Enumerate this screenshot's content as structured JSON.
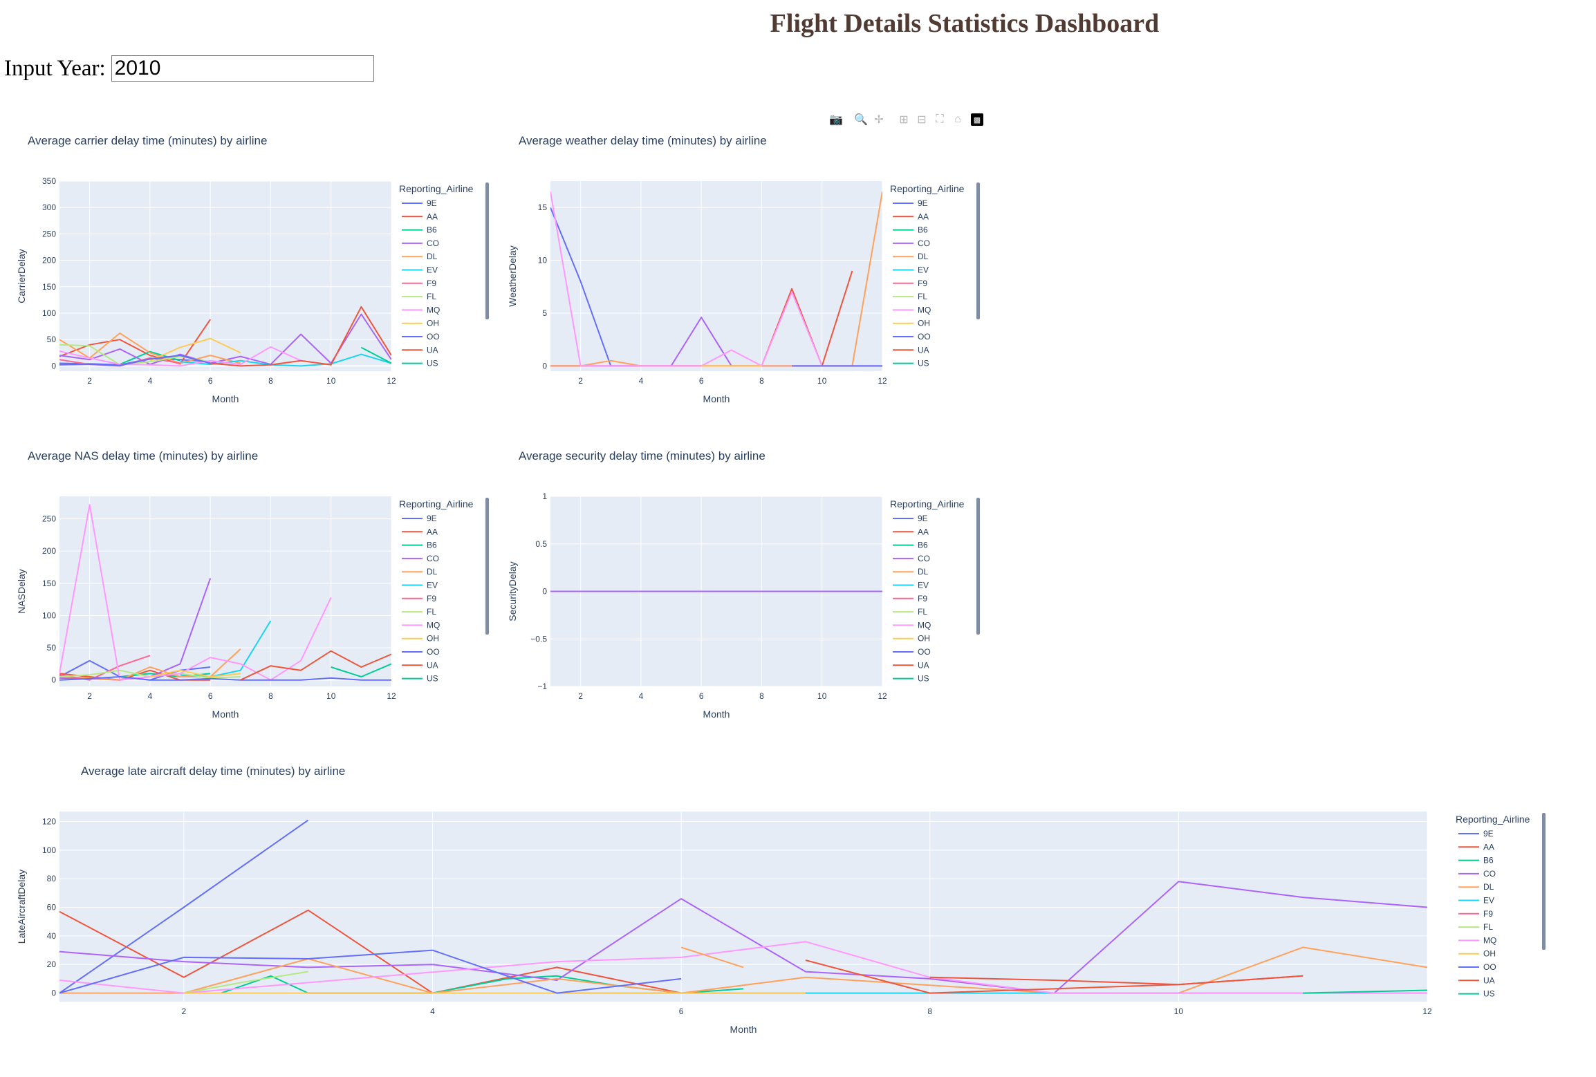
{
  "page": {
    "title": "Flight Details Statistics Dashboard"
  },
  "input": {
    "label": "Input Year:",
    "value": "2010"
  },
  "modebar": {
    "icons": [
      "camera-icon",
      "zoom-icon",
      "pan-icon",
      "zoom-in-icon",
      "zoom-out-icon",
      "autoscale-icon",
      "reset-axes-icon",
      "plotly-logo-icon"
    ]
  },
  "legend_title": "Reporting_Airline",
  "airlines": [
    "9E",
    "AA",
    "B6",
    "CO",
    "DL",
    "EV",
    "F9",
    "FL",
    "MQ",
    "OH",
    "OO",
    "UA",
    "US"
  ],
  "colors": {
    "9E": "#636efa",
    "AA": "#ef553b",
    "B6": "#00cc96",
    "CO": "#ab63fa",
    "DL": "#ffa15a",
    "EV": "#19d3f3",
    "F9": "#ff6692",
    "FL": "#b6e880",
    "MQ": "#ff97ff",
    "OH": "#fecb52",
    "OO": "#636efa",
    "UA": "#ef553b",
    "US": "#00cc96"
  },
  "chart_data": [
    {
      "id": "carrier",
      "type": "line",
      "title": "Average carrier delay time (minutes) by airline",
      "xlabel": "Month",
      "ylabel": "CarrierDelay",
      "xlim": [
        1,
        12
      ],
      "ylim": [
        -10,
        350
      ],
      "xticks": [
        2,
        4,
        6,
        8,
        10,
        12
      ],
      "yticks": [
        0,
        50,
        100,
        150,
        200,
        250,
        300,
        350
      ],
      "series": [
        {
          "name": "9E",
          "x": [
            1,
            2,
            3,
            4,
            5,
            6
          ],
          "y": [
            5,
            4,
            2,
            14,
            12,
            8
          ]
        },
        {
          "name": "AA",
          "x": [
            1,
            2,
            3,
            4,
            5,
            6
          ],
          "y": [
            18,
            40,
            50,
            20,
            4,
            88
          ]
        },
        {
          "name": "B6",
          "x": [
            3,
            4,
            5
          ],
          "y": [
            3,
            27,
            10
          ]
        },
        {
          "name": "CO",
          "x": [
            1,
            2,
            3,
            4,
            5,
            6,
            7,
            8,
            9,
            10,
            11,
            12
          ],
          "y": [
            20,
            12,
            32,
            3,
            22,
            5,
            18,
            3,
            60,
            5,
            98,
            12
          ]
        },
        {
          "name": "DL",
          "x": [
            1,
            2,
            3,
            4,
            5,
            6,
            7
          ],
          "y": [
            50,
            15,
            62,
            25,
            5,
            20,
            5
          ]
        },
        {
          "name": "EV",
          "x": [
            5,
            6,
            7,
            8,
            9,
            10,
            11,
            12
          ],
          "y": [
            8,
            3,
            10,
            2,
            0,
            4,
            22,
            5
          ]
        },
        {
          "name": "F9",
          "x": [
            1,
            2,
            3,
            4,
            5
          ],
          "y": [
            12,
            3,
            0,
            15,
            5
          ]
        },
        {
          "name": "FL",
          "x": [
            1,
            2,
            3,
            4,
            5,
            6
          ],
          "y": [
            40,
            38,
            2,
            8,
            18,
            8
          ]
        },
        {
          "name": "MQ",
          "x": [
            1,
            2,
            3,
            4,
            5,
            6,
            7,
            8,
            9
          ],
          "y": [
            28,
            15,
            3,
            2,
            0,
            10,
            3,
            36,
            10
          ]
        },
        {
          "name": "OH",
          "x": [
            4,
            5,
            6,
            7
          ],
          "y": [
            10,
            35,
            52,
            25
          ]
        },
        {
          "name": "OO",
          "x": [
            1,
            2,
            3,
            4,
            5,
            6
          ],
          "y": [
            2,
            3,
            1,
            13,
            20,
            5
          ]
        },
        {
          "name": "UA",
          "x": [
            6,
            7,
            8,
            9,
            10,
            11,
            12
          ],
          "y": [
            5,
            0,
            2,
            10,
            2,
            112,
            20
          ]
        },
        {
          "name": "US",
          "x": [
            11,
            12
          ],
          "y": [
            35,
            5
          ]
        }
      ]
    },
    {
      "id": "weather",
      "type": "line",
      "title": "Average weather delay time (minutes) by airline",
      "xlabel": "Month",
      "ylabel": "WeatherDelay",
      "xlim": [
        1,
        12
      ],
      "ylim": [
        -0.5,
        17.5
      ],
      "xticks": [
        2,
        4,
        6,
        8,
        10,
        12
      ],
      "yticks": [
        0,
        5,
        10,
        15
      ],
      "series": [
        {
          "name": "9E",
          "x": [
            1,
            2,
            3,
            4,
            5,
            6,
            7,
            8
          ],
          "y": [
            15,
            8,
            0,
            0,
            0,
            0,
            0,
            0
          ]
        },
        {
          "name": "AA",
          "x": [
            1,
            2,
            3,
            4,
            5,
            6,
            7,
            8,
            9,
            10,
            11
          ],
          "y": [
            0,
            0,
            0,
            0,
            0,
            0,
            0,
            0,
            7.3,
            0,
            9
          ]
        },
        {
          "name": "CO",
          "x": [
            1,
            2,
            3,
            4,
            5,
            6,
            7,
            8,
            9,
            10,
            11,
            12
          ],
          "y": [
            0,
            0,
            0,
            0,
            0,
            4.6,
            0,
            0,
            0,
            0,
            0,
            0
          ]
        },
        {
          "name": "DL",
          "x": [
            1,
            2,
            3,
            4,
            5,
            6,
            7,
            8,
            9,
            10,
            11,
            12
          ],
          "y": [
            0,
            0,
            0.5,
            0,
            0,
            0,
            0,
            0,
            0,
            0,
            0,
            16.5
          ]
        },
        {
          "name": "MQ",
          "x": [
            1,
            2,
            3,
            4,
            5,
            6,
            7,
            8,
            9,
            10
          ],
          "y": [
            16.5,
            0,
            0,
            0,
            0,
            0,
            1.5,
            0,
            7,
            0
          ]
        },
        {
          "name": "OH",
          "x": [
            6,
            7,
            8
          ],
          "y": [
            0,
            0,
            0
          ]
        },
        {
          "name": "OO",
          "x": [
            9,
            10,
            11,
            12
          ],
          "y": [
            0,
            0,
            0,
            0
          ]
        }
      ]
    },
    {
      "id": "nas",
      "type": "line",
      "title": "Average NAS delay time (minutes) by airline",
      "xlabel": "Month",
      "ylabel": "NASDelay",
      "xlim": [
        1,
        12
      ],
      "ylim": [
        -10,
        285
      ],
      "xticks": [
        2,
        4,
        6,
        8,
        10,
        12
      ],
      "yticks": [
        0,
        50,
        100,
        150,
        200,
        250
      ],
      "series": [
        {
          "name": "9E",
          "x": [
            1,
            2,
            3,
            4,
            5,
            6
          ],
          "y": [
            5,
            30,
            5,
            0,
            15,
            20
          ]
        },
        {
          "name": "AA",
          "x": [
            1,
            2,
            3,
            4,
            5,
            6
          ],
          "y": [
            10,
            5,
            0,
            15,
            0,
            0
          ]
        },
        {
          "name": "B6",
          "x": [
            3,
            4,
            5,
            6
          ],
          "y": [
            5,
            10,
            5,
            10
          ]
        },
        {
          "name": "CO",
          "x": [
            1,
            2,
            3,
            4,
            5,
            6
          ],
          "y": [
            3,
            2,
            0,
            5,
            25,
            158
          ]
        },
        {
          "name": "DL",
          "x": [
            1,
            2,
            3,
            4,
            5,
            6,
            7
          ],
          "y": [
            5,
            3,
            0,
            20,
            5,
            5,
            48
          ]
        },
        {
          "name": "EV",
          "x": [
            5,
            6,
            7,
            8
          ],
          "y": [
            8,
            5,
            15,
            92
          ]
        },
        {
          "name": "F9",
          "x": [
            1,
            2,
            3,
            4
          ],
          "y": [
            8,
            0,
            22,
            38
          ]
        },
        {
          "name": "FL",
          "x": [
            1,
            2,
            3,
            4,
            5,
            6,
            7
          ],
          "y": [
            5,
            8,
            15,
            5,
            10,
            3,
            5
          ]
        },
        {
          "name": "MQ",
          "x": [
            1,
            2,
            3,
            4,
            5,
            6,
            7,
            8,
            9,
            10
          ],
          "y": [
            10,
            272,
            0,
            5,
            10,
            35,
            25,
            0,
            30,
            128
          ]
        },
        {
          "name": "OH",
          "x": [
            4,
            5,
            6,
            7
          ],
          "y": [
            5,
            15,
            5,
            10
          ]
        },
        {
          "name": "OO",
          "x": [
            1,
            2,
            3,
            4,
            5,
            6,
            7,
            8,
            9,
            10,
            11,
            12
          ],
          "y": [
            0,
            2,
            5,
            0,
            0,
            2,
            0,
            0,
            0,
            3,
            0,
            0
          ]
        },
        {
          "name": "UA",
          "x": [
            7,
            8,
            9,
            10,
            11,
            12
          ],
          "y": [
            0,
            22,
            15,
            45,
            20,
            40
          ]
        },
        {
          "name": "US",
          "x": [
            10,
            11,
            12
          ],
          "y": [
            20,
            5,
            25
          ]
        }
      ]
    },
    {
      "id": "security",
      "type": "line",
      "title": "Average security delay time (minutes) by airline",
      "xlabel": "Month",
      "ylabel": "SecurityDelay",
      "xlim": [
        1,
        12
      ],
      "ylim": [
        -1,
        1
      ],
      "xticks": [
        2,
        4,
        6,
        8,
        10,
        12
      ],
      "yticks": [
        -1,
        -0.5,
        0,
        0.5,
        1
      ],
      "series": [
        {
          "name": "9E",
          "x": [
            1,
            2,
            3,
            4,
            5,
            6,
            7,
            8,
            9,
            10,
            11,
            12
          ],
          "y": [
            0,
            0,
            0,
            0,
            0,
            0,
            0,
            0,
            0,
            0,
            0,
            0
          ]
        },
        {
          "name": "AA",
          "x": [
            3,
            4,
            7,
            8
          ],
          "y": [
            0,
            0,
            0,
            0
          ]
        },
        {
          "name": "MQ",
          "x": [
            8,
            9
          ],
          "y": [
            0,
            0
          ]
        },
        {
          "name": "CO",
          "x": [
            1,
            2,
            3,
            4,
            5,
            6,
            7,
            8,
            9,
            10,
            11,
            12
          ],
          "y": [
            0,
            0,
            0,
            0,
            0,
            0,
            0,
            0,
            0,
            0,
            0,
            0
          ]
        }
      ]
    },
    {
      "id": "late",
      "type": "line",
      "title": "Average late aircraft delay time (minutes) by airline",
      "xlabel": "Month",
      "ylabel": "LateAircraftDelay",
      "xlim": [
        1,
        12
      ],
      "ylim": [
        -6,
        127
      ],
      "xticks": [
        2,
        4,
        6,
        8,
        10,
        12
      ],
      "yticks": [
        0,
        20,
        40,
        60,
        80,
        100,
        120
      ],
      "series": [
        {
          "name": "9E",
          "x": [
            1,
            2,
            3
          ],
          "y": [
            0,
            60,
            121
          ]
        },
        {
          "name": "AA",
          "x": [
            1,
            2,
            3,
            4,
            5,
            6
          ],
          "y": [
            57,
            11,
            58,
            0,
            18,
            0
          ]
        },
        {
          "name": "B6",
          "x": [
            2.3,
            2.7,
            3,
            3.5,
            4,
            4.6,
            5,
            5.5,
            6,
            6.5
          ],
          "y": [
            0,
            12,
            0,
            0,
            0,
            10,
            12,
            5,
            0,
            3
          ]
        },
        {
          "name": "CO",
          "x": [
            1,
            2,
            3,
            4,
            5,
            6,
            7,
            8,
            9,
            10,
            11,
            12
          ],
          "y": [
            29,
            22,
            18,
            20,
            9,
            66,
            15,
            10,
            0,
            78,
            67,
            60
          ]
        },
        {
          "name": "DL",
          "x": [
            1,
            2,
            3,
            3.5,
            4,
            5,
            6,
            7,
            9,
            10,
            11,
            12
          ],
          "y": [
            0,
            0,
            24,
            12,
            0,
            10,
            0,
            11,
            0,
            0,
            32,
            18
          ]
        },
        {
          "name": "EV",
          "x": [
            5,
            5.4,
            7,
            8,
            10,
            11,
            12
          ],
          "y": [
            0,
            0,
            0,
            0,
            0,
            0,
            0
          ]
        },
        {
          "name": "F9",
          "x": [
            3,
            3.5,
            4
          ],
          "y": [
            0,
            0,
            0
          ]
        },
        {
          "name": "FL",
          "x": [
            2,
            2.5,
            3
          ],
          "y": [
            0,
            8,
            15
          ]
        },
        {
          "name": "MQ",
          "x": [
            1,
            2,
            5,
            6,
            7,
            8,
            9,
            12
          ],
          "y": [
            9,
            0,
            22,
            25,
            36,
            11,
            0,
            0
          ]
        },
        {
          "name": "OH",
          "x": [
            2,
            3,
            4,
            5,
            6,
            7
          ],
          "y": [
            0,
            0,
            0,
            0,
            0,
            0
          ]
        },
        {
          "name": "OO",
          "x": [
            1,
            2,
            3,
            4,
            5,
            6
          ],
          "y": [
            0,
            25,
            24,
            30,
            0,
            10
          ]
        },
        {
          "name": "UA",
          "x": [
            7,
            8,
            10,
            11
          ],
          "y": [
            23,
            0,
            6,
            12
          ]
        },
        {
          "name": "US",
          "x": [
            11,
            12
          ],
          "y": [
            0,
            2
          ]
        },
        {
          "name": "DL",
          "x": [
            6,
            6.5
          ],
          "y": [
            32,
            18
          ]
        },
        {
          "name": "UA",
          "x": [
            8,
            9,
            10,
            11
          ],
          "y": [
            11,
            9,
            6,
            12
          ]
        }
      ]
    }
  ]
}
